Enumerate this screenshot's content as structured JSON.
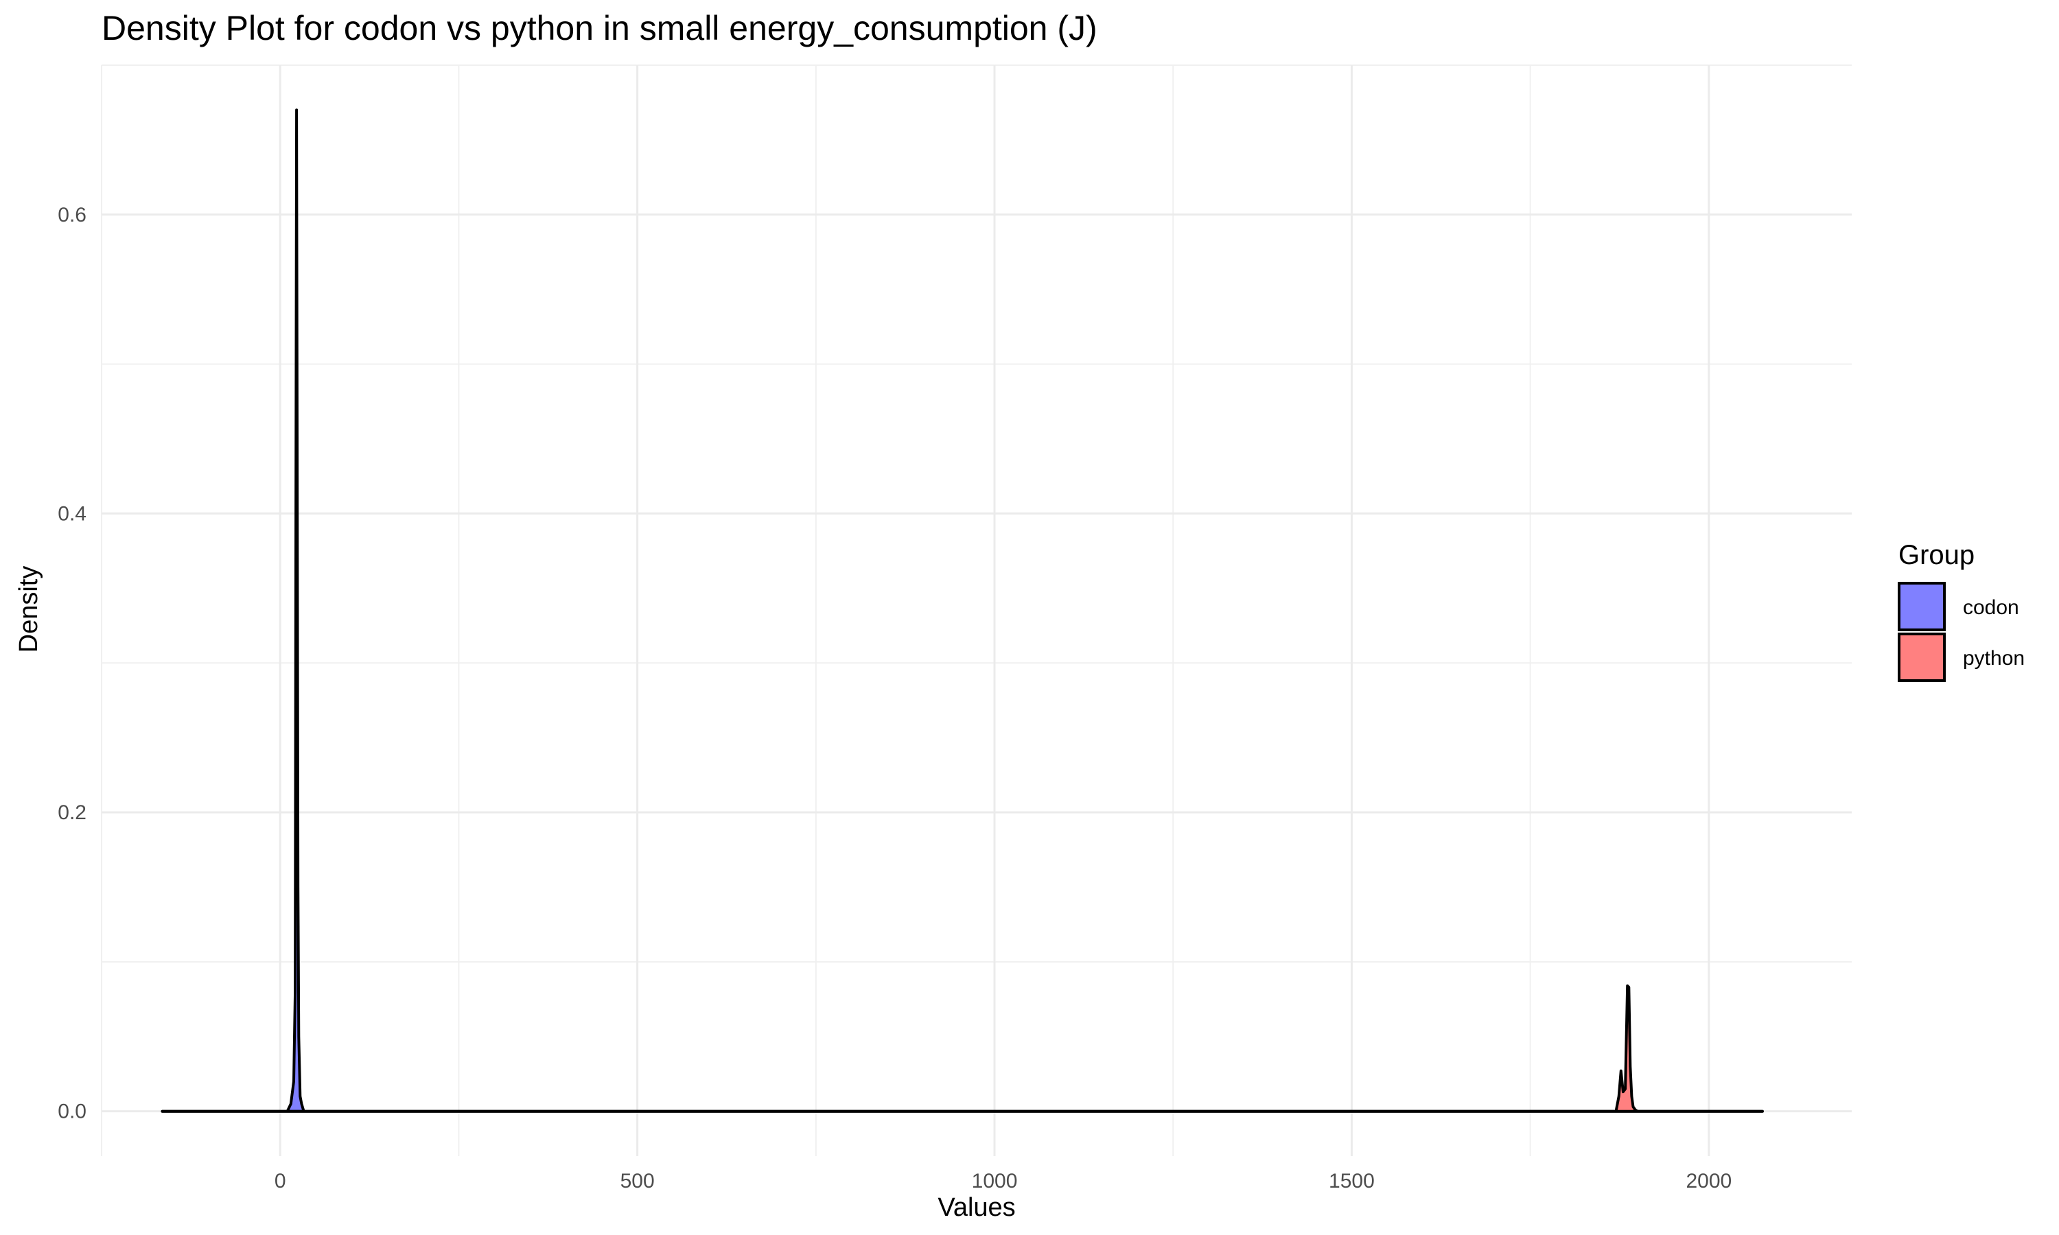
{
  "chart_data": {
    "type": "area",
    "title": "Density Plot for codon vs python in small energy_consumption (J)",
    "xlabel": "Values",
    "ylabel": "Density",
    "xlim": [
      -250,
      2200
    ],
    "ylim": [
      -0.03,
      0.7
    ],
    "x_ticks": [
      0,
      500,
      1000,
      1500,
      2000
    ],
    "y_ticks": [
      0.0,
      0.2,
      0.4,
      0.6
    ],
    "x_tick_labels": [
      "0",
      "500",
      "1000",
      "1500",
      "2000"
    ],
    "y_tick_labels": [
      "0.0",
      "0.2",
      "0.4",
      "0.6"
    ],
    "grid": true,
    "legend": {
      "title": "Group",
      "position": "right",
      "entries": [
        {
          "label": "codon",
          "color": "#8080ff"
        },
        {
          "label": "python",
          "color": "#ff8080"
        }
      ]
    },
    "series": [
      {
        "name": "codon",
        "color": "#8080ff",
        "x": [
          -165,
          10,
          15,
          19,
          21,
          22,
          23,
          24,
          25,
          26,
          28,
          30,
          33,
          2075
        ],
        "y": [
          0,
          0,
          0.005,
          0.02,
          0.08,
          0.4,
          0.67,
          0.4,
          0.15,
          0.05,
          0.01,
          0.005,
          0,
          0
        ]
      },
      {
        "name": "python",
        "color": "#ff8080",
        "x": [
          -165,
          1870,
          1874,
          1877,
          1880,
          1883,
          1886,
          1888,
          1890,
          1892,
          1894,
          1897,
          1900,
          2075
        ],
        "y": [
          0,
          0,
          0.01,
          0.027,
          0.013,
          0.015,
          0.084,
          0.083,
          0.03,
          0.01,
          0.003,
          0.001,
          0,
          0
        ]
      }
    ]
  }
}
